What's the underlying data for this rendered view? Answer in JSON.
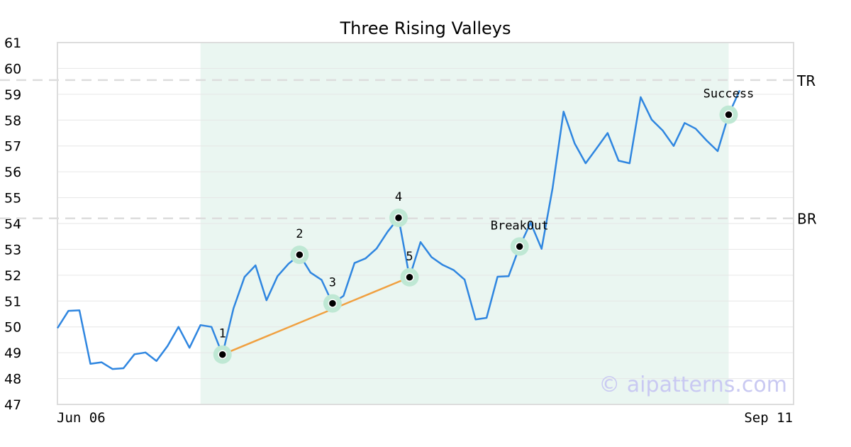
{
  "chart_data": {
    "type": "line",
    "title": "Three Rising Valleys",
    "ylim": [
      47,
      61
    ],
    "yticks": [
      47,
      48,
      49,
      50,
      51,
      52,
      53,
      54,
      55,
      56,
      57,
      58,
      59,
      60,
      61
    ],
    "grid": true,
    "x_labels": {
      "start": "Jun 06",
      "end": "Sep 11"
    },
    "series": [
      {
        "values": [
          49.95,
          50.62,
          50.64,
          48.57,
          48.63,
          48.37,
          48.4,
          48.94,
          49.01,
          48.68,
          49.26,
          50.0,
          49.19,
          50.07,
          50.0,
          48.93,
          50.72,
          51.93,
          52.38,
          51.03,
          51.96,
          52.44,
          52.79,
          52.1,
          51.82,
          50.91,
          51.2,
          52.47,
          52.65,
          53.03,
          53.68,
          54.22,
          51.92,
          53.28,
          52.7,
          52.4,
          52.2,
          51.83,
          50.29,
          50.35,
          51.94,
          51.96,
          53.11,
          54.03,
          53.02,
          55.37,
          58.33,
          57.1,
          56.33,
          56.91,
          57.5,
          56.43,
          56.33,
          58.89,
          58.02,
          57.6,
          57.0,
          57.89,
          57.67,
          57.21,
          56.8,
          58.21,
          59.15
        ]
      }
    ],
    "highlight_range": {
      "from_index": 13,
      "to_index": 61
    },
    "levels": [
      {
        "label": "TR",
        "value": 59.55
      },
      {
        "label": "BR",
        "value": 54.2
      }
    ],
    "points": [
      {
        "label": "1",
        "index": 15,
        "value": 48.93
      },
      {
        "label": "2",
        "index": 22,
        "value": 52.79
      },
      {
        "label": "3",
        "index": 25,
        "value": 50.91
      },
      {
        "label": "4",
        "index": 31,
        "value": 54.22
      },
      {
        "label": "5",
        "index": 32,
        "value": 51.92
      },
      {
        "label": "BreakOut",
        "index": 42,
        "value": 53.11
      },
      {
        "label": "Success",
        "index": 61,
        "value": 58.21
      }
    ],
    "trendline": {
      "from_point": "1",
      "to_point": "5"
    },
    "watermark": "© aipatterns.com",
    "colors": {
      "line": "#2f86e0",
      "highlight": "#eaf6f1",
      "marker_halo": "#bfe8d4",
      "trendline": "#f0a040",
      "level": "#dddddd",
      "grid": "#e6e6e6",
      "frame": "#dddddd"
    }
  }
}
